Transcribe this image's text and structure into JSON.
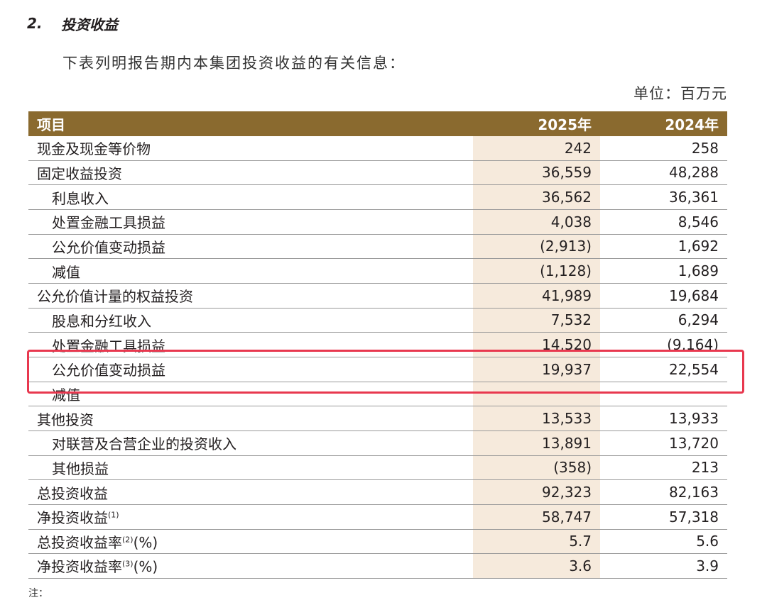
{
  "section": {
    "number": "2.",
    "title": "投资收益"
  },
  "intro": "下表列明报告期内本集团投资收益的有关信息：",
  "unit": "单位：百万元",
  "table": {
    "headers": [
      "项目",
      "2025年",
      "2024年"
    ],
    "rows": [
      {
        "label": "现金及现金等价物",
        "v2025": "242",
        "v2024": "258",
        "indent": false,
        "fn": "",
        "suffix": ""
      },
      {
        "label": "固定收益投资",
        "v2025": "36,559",
        "v2024": "48,288",
        "indent": false,
        "fn": "",
        "suffix": ""
      },
      {
        "label": "利息收入",
        "v2025": "36,562",
        "v2024": "36,361",
        "indent": true,
        "fn": "",
        "suffix": ""
      },
      {
        "label": "处置金融工具损益",
        "v2025": "4,038",
        "v2024": "8,546",
        "indent": true,
        "fn": "",
        "suffix": ""
      },
      {
        "label": "公允价值变动损益",
        "v2025": "(2,913)",
        "v2024": "1,692",
        "indent": true,
        "fn": "",
        "suffix": ""
      },
      {
        "label": "减值",
        "v2025": "(1,128)",
        "v2024": "1,689",
        "indent": true,
        "fn": "",
        "suffix": ""
      },
      {
        "label": "公允价值计量的权益投资",
        "v2025": "41,989",
        "v2024": "19,684",
        "indent": false,
        "fn": "",
        "suffix": ""
      },
      {
        "label": "股息和分红收入",
        "v2025": "7,532",
        "v2024": "6,294",
        "indent": true,
        "fn": "",
        "suffix": ""
      },
      {
        "label": "处置金融工具损益",
        "v2025": "14,520",
        "v2024": "(9,164)",
        "indent": true,
        "fn": "",
        "suffix": ""
      },
      {
        "label": "公允价值变动损益",
        "v2025": "19,937",
        "v2024": "22,554",
        "indent": true,
        "fn": "",
        "suffix": ""
      },
      {
        "label": "减值",
        "v2025": "",
        "v2024": "",
        "indent": true,
        "fn": "",
        "suffix": ""
      },
      {
        "label": "其他投资",
        "v2025": "13,533",
        "v2024": "13,933",
        "indent": false,
        "fn": "",
        "suffix": ""
      },
      {
        "label": "对联营及合营企业的投资收入",
        "v2025": "13,891",
        "v2024": "13,720",
        "indent": true,
        "fn": "",
        "suffix": ""
      },
      {
        "label": "其他损益",
        "v2025": "(358)",
        "v2024": "213",
        "indent": true,
        "fn": "",
        "suffix": ""
      },
      {
        "label": "总投资收益",
        "v2025": "92,323",
        "v2024": "82,163",
        "indent": false,
        "fn": "",
        "suffix": ""
      },
      {
        "label": "净投资收益",
        "v2025": "58,747",
        "v2024": "57,318",
        "indent": false,
        "fn": "(1)",
        "suffix": ""
      },
      {
        "label": "总投资收益率",
        "v2025": "5.7",
        "v2024": "5.6",
        "indent": false,
        "fn": "(2)",
        "suffix": "(%)"
      },
      {
        "label": "净投资收益率",
        "v2025": "3.6",
        "v2024": "3.9",
        "indent": false,
        "fn": "(3)",
        "suffix": "(%)"
      }
    ]
  },
  "note": "注：",
  "colors": {
    "header_bg": "#8a6a2f",
    "highlight_col": "#f6eadc",
    "highlight_box": "#e8384f"
  }
}
